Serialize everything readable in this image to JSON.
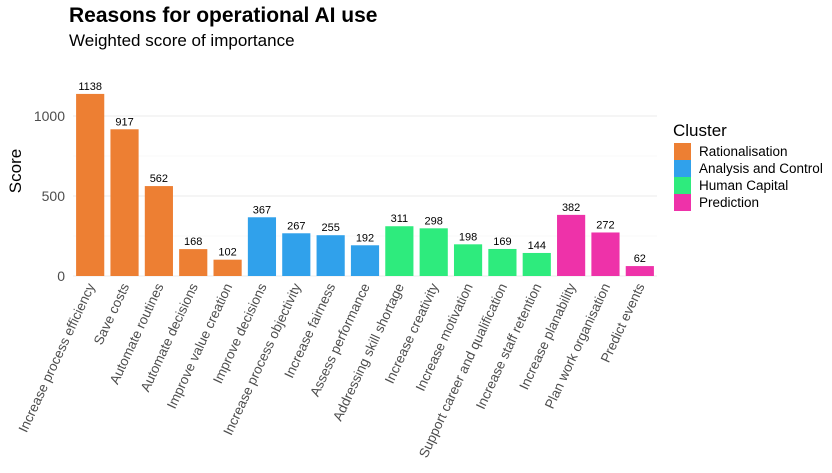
{
  "chart_data": {
    "type": "bar",
    "title": "Reasons for operational AI use",
    "subtitle": "Weighted score of importance",
    "xlabel": "",
    "ylabel": "Score",
    "ylim": [
      0,
      1200
    ],
    "yticks": [
      0,
      500,
      1000
    ],
    "grid": true,
    "legend": {
      "title": "Cluster",
      "position": "right",
      "entries": [
        {
          "name": "Rationalisation",
          "color": "#ED7F33"
        },
        {
          "name": "Analysis and Control",
          "color": "#30A1EB"
        },
        {
          "name": "Human Capital",
          "color": "#2EEB7D"
        },
        {
          "name": "Prediction",
          "color": "#EE32A9"
        }
      ]
    },
    "categories": [
      "Increase process efficiency",
      "Save costs",
      "Automate routines",
      "Automate decisions",
      "Improve value creation",
      "Improve decisions",
      "Increase process objectivity",
      "Increase fairness",
      "Assess performance",
      "Addressing skill shortage",
      "Increase creativity",
      "Increase motivation",
      "Support career and qualification",
      "Increase staff retention",
      "Increase planability",
      "Plan work organisation",
      "Predict events"
    ],
    "values": [
      1138,
      917,
      562,
      168,
      102,
      367,
      267,
      255,
      192,
      311,
      298,
      198,
      169,
      144,
      382,
      272,
      62
    ],
    "clusters": [
      "Rationalisation",
      "Rationalisation",
      "Rationalisation",
      "Rationalisation",
      "Rationalisation",
      "Analysis and Control",
      "Analysis and Control",
      "Analysis and Control",
      "Analysis and Control",
      "Human Capital",
      "Human Capital",
      "Human Capital",
      "Human Capital",
      "Human Capital",
      "Prediction",
      "Prediction",
      "Prediction"
    ],
    "data_labels": [
      "1138",
      "917",
      "562",
      "168",
      "102",
      "367",
      "267",
      "255",
      "192",
      "311",
      "298",
      "198",
      "169",
      "144",
      "382",
      "272",
      "62"
    ]
  }
}
